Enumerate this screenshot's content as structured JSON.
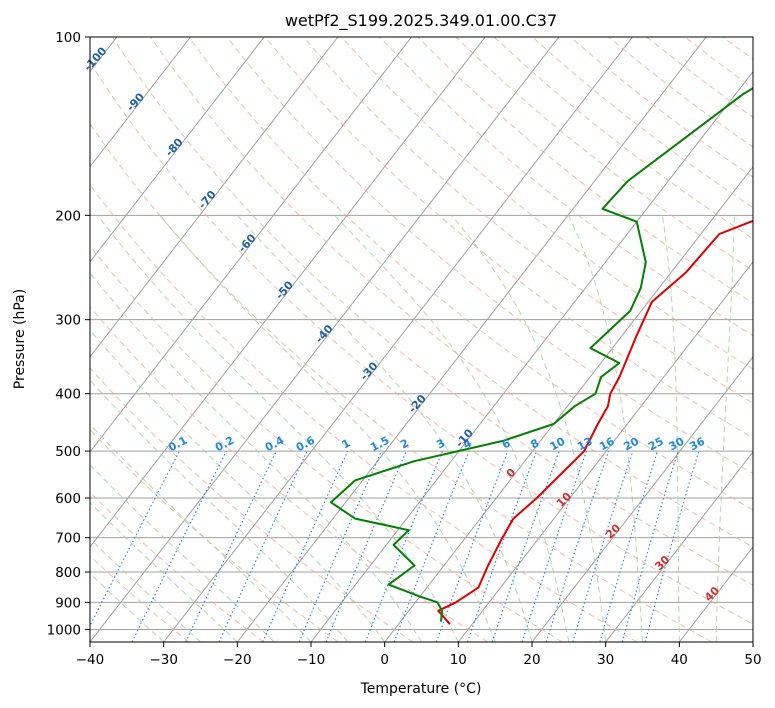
{
  "chart_data": {
    "type": "skew-t",
    "title": "wetPf2_S199.2025.349.01.00.C37",
    "xlabel": "Temperature (°C)",
    "ylabel": "Pressure (hPa)",
    "xlim": [
      -40,
      50
    ],
    "ylim": [
      1050,
      100
    ],
    "y_scale": "log",
    "grid": true,
    "x_ticks": [
      "−40",
      "−30",
      "−20",
      "−10",
      "0",
      "10",
      "20",
      "30",
      "40",
      "50"
    ],
    "x_tick_values": [
      -40,
      -30,
      -20,
      -10,
      0,
      10,
      20,
      30,
      40,
      50
    ],
    "y_ticks": [
      "100",
      "200",
      "300",
      "400",
      "500",
      "600",
      "700",
      "800",
      "900",
      "1000"
    ],
    "y_tick_values": [
      100,
      200,
      300,
      400,
      500,
      600,
      700,
      800,
      900,
      1000
    ],
    "colors": {
      "temperature": "#e00000",
      "dewpoint": "#008000",
      "isotherm": "#a0a0a0",
      "isobar": "#a0a0a0",
      "dry_adiabat": "#f4a58a",
      "moist_adiabat": "#9fd39f",
      "mixing_ratio": "#1e88e5",
      "dry_label": "#1f5fa8",
      "moist_label": "#d32f2f"
    },
    "series": [
      {
        "key": "temperature",
        "points": [
          [
            7.0,
            980
          ],
          [
            4.0,
            930
          ],
          [
            5.5,
            900
          ],
          [
            7.0,
            850
          ],
          [
            6.0,
            780
          ],
          [
            5.0,
            700
          ],
          [
            4.5,
            650
          ],
          [
            5.5,
            600
          ],
          [
            7.0,
            500
          ],
          [
            6.0,
            450
          ],
          [
            5.5,
            420
          ],
          [
            4.5,
            400
          ],
          [
            4.0,
            375
          ],
          [
            2.0,
            320
          ],
          [
            0.5,
            280
          ],
          [
            2.0,
            250
          ],
          [
            2.5,
            215
          ],
          [
            5.5,
            205
          ],
          [
            10.0,
            195
          ],
          [
            14.0,
            180
          ],
          [
            17.0,
            160
          ],
          [
            20.0,
            140
          ],
          [
            22.0,
            125
          ],
          [
            23.0,
            110
          ],
          [
            26.0,
            100
          ]
        ]
      },
      {
        "key": "dewpoint",
        "points": [
          [
            5.5,
            970
          ],
          [
            4.5,
            930
          ],
          [
            3.0,
            900
          ],
          [
            0.0,
            880
          ],
          [
            -5.5,
            840
          ],
          [
            -4.0,
            780
          ],
          [
            -9.0,
            720
          ],
          [
            -8.5,
            680
          ],
          [
            -17.0,
            650
          ],
          [
            -22.0,
            610
          ],
          [
            -21.0,
            560
          ],
          [
            -15.0,
            520
          ],
          [
            -5.0,
            480
          ],
          [
            0.0,
            450
          ],
          [
            1.0,
            420
          ],
          [
            2.5,
            400
          ],
          [
            1.5,
            375
          ],
          [
            2.5,
            355
          ],
          [
            -3.0,
            335
          ],
          [
            -1.5,
            290
          ],
          [
            -2.5,
            265
          ],
          [
            -4.5,
            240
          ],
          [
            -10.0,
            205
          ],
          [
            -16.0,
            195
          ],
          [
            -15.5,
            175
          ],
          [
            -12.5,
            150
          ],
          [
            -9.0,
            125
          ],
          [
            -5.0,
            110
          ],
          [
            -3.5,
            100
          ]
        ]
      }
    ],
    "mixing_ratio_labels": [
      "0.1",
      "0.2",
      "0.4",
      "0.6",
      "1",
      "1.5",
      "2",
      "3",
      "4",
      "6",
      "8",
      "10",
      "13",
      "16",
      "20",
      "25",
      "30",
      "36"
    ],
    "mixing_ratio_values": [
      0.1,
      0.2,
      0.4,
      0.6,
      1,
      1.5,
      2,
      3,
      4,
      6,
      8,
      10,
      13,
      16,
      20,
      25,
      30,
      36
    ],
    "mixing_ratio_label_pressure": 500,
    "dry_adiabat_labels": [
      {
        "text": "-100",
        "t": -100,
        "p": 110
      },
      {
        "text": "-90",
        "t": -90,
        "p": 130
      },
      {
        "text": "-80",
        "t": -80,
        "p": 155
      },
      {
        "text": "-70",
        "t": -70,
        "p": 190
      },
      {
        "text": "-60",
        "t": -60,
        "p": 225
      },
      {
        "text": "-50",
        "t": -50,
        "p": 270
      },
      {
        "text": "-40",
        "t": -40,
        "p": 320
      },
      {
        "text": "-30",
        "t": -30,
        "p": 370
      },
      {
        "text": "-20",
        "t": -20,
        "p": 420
      },
      {
        "text": "-10",
        "t": -10,
        "p": 480
      }
    ],
    "moist_adiabat_labels": [
      {
        "text": "0",
        "t": 0,
        "p": 550
      },
      {
        "text": "10",
        "t": 10,
        "p": 610
      },
      {
        "text": "20",
        "t": 20,
        "p": 690
      },
      {
        "text": "30",
        "t": 30,
        "p": 780
      },
      {
        "text": "40",
        "t": 40,
        "p": 880
      }
    ]
  }
}
